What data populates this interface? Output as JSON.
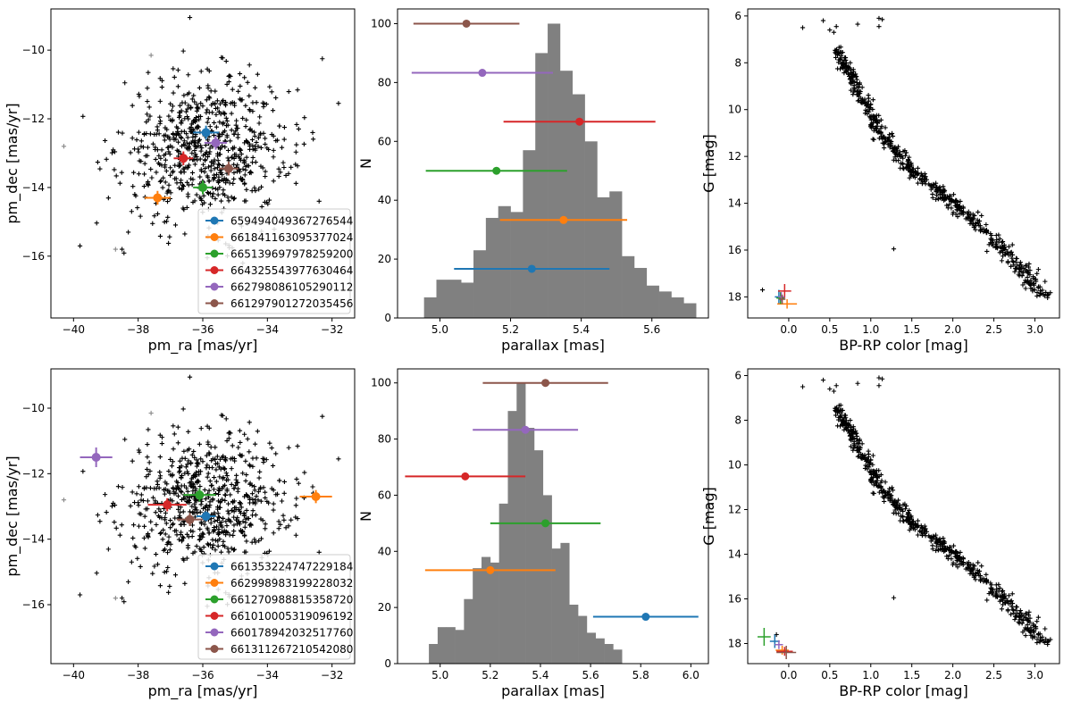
{
  "colors": {
    "stars": "#000000",
    "hist": "#808080",
    "series": [
      "#1f77b4",
      "#ff7f0e",
      "#2ca02c",
      "#d62728",
      "#9467bd",
      "#8c564b"
    ]
  },
  "chart_data": [
    {
      "type": "scatter",
      "xlabel": "pm_ra [mas/yr]",
      "ylabel": "pm_dec [mas/yr]",
      "xlim": [
        -40.7,
        -31.3
      ],
      "ylim": [
        -17.8,
        -8.8
      ],
      "xticks": [
        -40,
        -38,
        -36,
        -34,
        -32
      ],
      "yticks": [
        -16,
        -14,
        -12,
        -10
      ],
      "cloud": {
        "center": [
          -35.9,
          -12.9
        ],
        "sd": [
          1.3,
          1.05
        ],
        "count": 700
      },
      "outliers": [
        [
          -36.4,
          -9.05
        ],
        [
          -37.6,
          -10.15
        ],
        [
          -32.3,
          -10.25
        ],
        [
          -31.8,
          -11.55
        ],
        [
          -40.3,
          -12.8
        ],
        [
          -32.6,
          -12.4
        ],
        [
          -39.8,
          -15.7
        ],
        [
          -38.7,
          -15.8
        ],
        [
          -32.4,
          -14.4
        ],
        [
          -36.1,
          -11.1
        ]
      ],
      "legend_location": "lower right",
      "series": [
        {
          "name": "659494049367276544",
          "x": -35.9,
          "y": -12.4,
          "xerr": 0.4,
          "yerr": 0.2
        },
        {
          "name": "661841163095377024",
          "x": -37.4,
          "y": -14.3,
          "xerr": 0.4,
          "yerr": 0.2
        },
        {
          "name": "665139697978259200",
          "x": -36.0,
          "y": -14.0,
          "xerr": 0.3,
          "yerr": 0.2
        },
        {
          "name": "664325543977630464",
          "x": -36.6,
          "y": -13.15,
          "xerr": 0.3,
          "yerr": 0.2
        },
        {
          "name": "662798086105290112",
          "x": -35.6,
          "y": -12.7,
          "xerr": 0.35,
          "yerr": 0.2
        },
        {
          "name": "661297901272035456",
          "x": -35.2,
          "y": -13.45,
          "xerr": 0.3,
          "yerr": 0.2
        }
      ]
    },
    {
      "type": "bar",
      "xlabel": "parallax [mas]",
      "ylabel": "N",
      "xlim": [
        4.88,
        5.76
      ],
      "ylim": [
        0,
        105
      ],
      "xticks": [
        5.0,
        5.2,
        5.4,
        5.6
      ],
      "yticks": [
        0,
        20,
        40,
        60,
        80,
        100
      ],
      "bin_edges": [
        4.955,
        4.99,
        5.025,
        5.06,
        5.095,
        5.13,
        5.165,
        5.2,
        5.235,
        5.27,
        5.305,
        5.34,
        5.375,
        5.41,
        5.445,
        5.48,
        5.515,
        5.55,
        5.585,
        5.62,
        5.655,
        5.69,
        5.725
      ],
      "counts": [
        7,
        13,
        13,
        12,
        23,
        34,
        38,
        36,
        57,
        90,
        100,
        84,
        76,
        60,
        41,
        43,
        21,
        17,
        11,
        9,
        7,
        5
      ],
      "errorbars": [
        {
          "x": 5.075,
          "xerr": 0.15,
          "y": 100
        },
        {
          "x": 5.12,
          "xerr": 0.2,
          "y": 83.3
        },
        {
          "x": 5.395,
          "xerr": 0.215,
          "y": 66.7
        },
        {
          "x": 5.16,
          "xerr": 0.2,
          "y": 50
        },
        {
          "x": 5.35,
          "xerr": 0.18,
          "y": 33.3
        },
        {
          "x": 5.26,
          "xerr": 0.22,
          "y": 16.7
        }
      ]
    },
    {
      "type": "scatter",
      "xlabel": "BP-RP color [mag]",
      "ylabel": "G [mag]",
      "xlim": [
        -0.5,
        3.3
      ],
      "ylim": [
        18.9,
        5.7
      ],
      "xticks": [
        0.0,
        0.5,
        1.0,
        1.5,
        2.0,
        2.5,
        3.0
      ],
      "yticks": [
        6,
        8,
        10,
        12,
        14,
        16,
        18
      ],
      "track": [
        [
          0.58,
          7.4
        ],
        [
          0.7,
          8.2
        ],
        [
          0.85,
          9.2
        ],
        [
          1.0,
          10.2
        ],
        [
          1.2,
          11.4
        ],
        [
          1.5,
          12.6
        ],
        [
          2.0,
          14.0
        ],
        [
          2.4,
          15.2
        ],
        [
          2.7,
          16.2
        ],
        [
          2.9,
          17.0
        ],
        [
          3.1,
          18.0
        ]
      ],
      "track_count": 600,
      "extras": [
        [
          0.17,
          6.5
        ],
        [
          0.42,
          6.2
        ],
        [
          0.55,
          6.7
        ],
        [
          0.5,
          6.6
        ],
        [
          0.58,
          6.45
        ],
        [
          0.84,
          6.35
        ],
        [
          1.1,
          6.1
        ],
        [
          1.14,
          6.15
        ],
        [
          1.1,
          6.45
        ],
        [
          1.28,
          15.95
        ],
        [
          -0.32,
          17.7
        ]
      ],
      "sources": [
        {
          "x": -0.12,
          "y": 18.0,
          "xerr": 0.05,
          "yerr": 0.3
        },
        {
          "x": -0.02,
          "y": 18.3,
          "xerr": 0.12,
          "yerr": 0.2
        },
        {
          "x": -0.1,
          "y": 18.05,
          "xerr": 0.05,
          "yerr": 0.25
        },
        {
          "x": -0.05,
          "y": 17.75,
          "xerr": 0.08,
          "yerr": 0.3
        },
        {
          "x": -0.09,
          "y": 18.0,
          "xerr": 0.04,
          "yerr": 0.2
        },
        {
          "x": -0.08,
          "y": 18.1,
          "xerr": 0.04,
          "yerr": 0.2
        }
      ]
    },
    {
      "type": "scatter",
      "xlabel": "pm_ra [mas/yr]",
      "ylabel": "pm_dec [mas/yr]",
      "xlim": [
        -40.7,
        -31.3
      ],
      "ylim": [
        -17.8,
        -8.8
      ],
      "xticks": [
        -40,
        -38,
        -36,
        -34,
        -32
      ],
      "yticks": [
        -16,
        -14,
        -12,
        -10
      ],
      "cloud": {
        "center": [
          -35.9,
          -12.9
        ],
        "sd": [
          1.3,
          1.05
        ],
        "count": 700
      },
      "outliers": [
        [
          -36.4,
          -9.05
        ],
        [
          -37.6,
          -10.15
        ],
        [
          -32.3,
          -10.25
        ],
        [
          -31.8,
          -11.55
        ],
        [
          -40.3,
          -12.8
        ],
        [
          -32.6,
          -12.4
        ],
        [
          -39.8,
          -15.7
        ],
        [
          -38.7,
          -15.8
        ],
        [
          -32.4,
          -14.4
        ],
        [
          -36.1,
          -11.1
        ]
      ],
      "legend_location": "lower right",
      "series": [
        {
          "name": "661353224747229184",
          "x": -35.9,
          "y": -13.3,
          "xerr": 0.3,
          "yerr": 0.15
        },
        {
          "name": "662998983199228032",
          "x": -32.5,
          "y": -12.7,
          "xerr": 0.5,
          "yerr": 0.2
        },
        {
          "name": "661270988815358720",
          "x": -36.1,
          "y": -12.65,
          "xerr": 0.5,
          "yerr": 0.2
        },
        {
          "name": "661010005319096192",
          "x": -37.1,
          "y": -12.95,
          "xerr": 0.6,
          "yerr": 0.2
        },
        {
          "name": "660178942032517760",
          "x": -39.3,
          "y": -11.5,
          "xerr": 0.5,
          "yerr": 0.3
        },
        {
          "name": "661311267210542080",
          "x": -36.4,
          "y": -13.4,
          "xerr": 0.4,
          "yerr": 0.2
        }
      ]
    },
    {
      "type": "bar",
      "xlabel": "parallax [mas]",
      "ylabel": "N",
      "xlim": [
        4.83,
        6.07
      ],
      "ylim": [
        0,
        105
      ],
      "xticks": [
        5.0,
        5.2,
        5.4,
        5.6,
        5.8,
        6.0
      ],
      "yticks": [
        0,
        20,
        40,
        60,
        80,
        100
      ],
      "bin_edges": [
        4.955,
        4.99,
        5.025,
        5.06,
        5.095,
        5.13,
        5.165,
        5.2,
        5.235,
        5.27,
        5.305,
        5.34,
        5.375,
        5.41,
        5.445,
        5.48,
        5.515,
        5.55,
        5.585,
        5.62,
        5.655,
        5.69,
        5.725
      ],
      "counts": [
        7,
        13,
        13,
        12,
        23,
        34,
        38,
        36,
        57,
        90,
        100,
        84,
        76,
        60,
        41,
        43,
        21,
        17,
        11,
        9,
        7,
        5
      ],
      "errorbars": [
        {
          "x": 5.42,
          "xerr": 0.25,
          "y": 100
        },
        {
          "x": 5.34,
          "xerr": 0.21,
          "y": 83.3
        },
        {
          "x": 5.1,
          "xerr": 0.24,
          "y": 66.7
        },
        {
          "x": 5.42,
          "xerr": 0.22,
          "y": 50
        },
        {
          "x": 5.2,
          "xerr": 0.26,
          "y": 33.3
        },
        {
          "x": 5.82,
          "xerr": 0.21,
          "y": 16.7
        }
      ]
    },
    {
      "type": "scatter",
      "xlabel": "BP-RP color [mag]",
      "ylabel": "G [mag]",
      "xlim": [
        -0.5,
        3.3
      ],
      "ylim": [
        18.9,
        5.7
      ],
      "xticks": [
        0.0,
        0.5,
        1.0,
        1.5,
        2.0,
        2.5,
        3.0
      ],
      "yticks": [
        6,
        8,
        10,
        12,
        14,
        16,
        18
      ],
      "track": [
        [
          0.58,
          7.4
        ],
        [
          0.7,
          8.2
        ],
        [
          0.85,
          9.2
        ],
        [
          1.0,
          10.2
        ],
        [
          1.2,
          11.4
        ],
        [
          1.5,
          12.6
        ],
        [
          2.0,
          14.0
        ],
        [
          2.4,
          15.2
        ],
        [
          2.7,
          16.2
        ],
        [
          2.9,
          17.0
        ],
        [
          3.1,
          18.0
        ]
      ],
      "track_count": 600,
      "extras": [
        [
          0.17,
          6.5
        ],
        [
          0.42,
          6.2
        ],
        [
          0.55,
          6.7
        ],
        [
          0.5,
          6.6
        ],
        [
          0.58,
          6.45
        ],
        [
          0.84,
          6.35
        ],
        [
          1.1,
          6.1
        ],
        [
          1.14,
          6.15
        ],
        [
          1.1,
          6.45
        ],
        [
          1.28,
          15.95
        ],
        [
          -0.15,
          17.6
        ]
      ],
      "sources": [
        {
          "x": -0.17,
          "y": 17.9,
          "xerr": 0.06,
          "yerr": 0.3
        },
        {
          "x": -0.08,
          "y": 18.3,
          "xerr": 0.08,
          "yerr": 0.2
        },
        {
          "x": -0.3,
          "y": 17.7,
          "xerr": 0.08,
          "yerr": 0.4
        },
        {
          "x": -0.05,
          "y": 18.35,
          "xerr": 0.1,
          "yerr": 0.2
        },
        {
          "x": -0.12,
          "y": 18.05,
          "xerr": 0.05,
          "yerr": 0.2
        },
        {
          "x": -0.03,
          "y": 18.4,
          "xerr": 0.12,
          "yerr": 0.3
        }
      ]
    }
  ]
}
